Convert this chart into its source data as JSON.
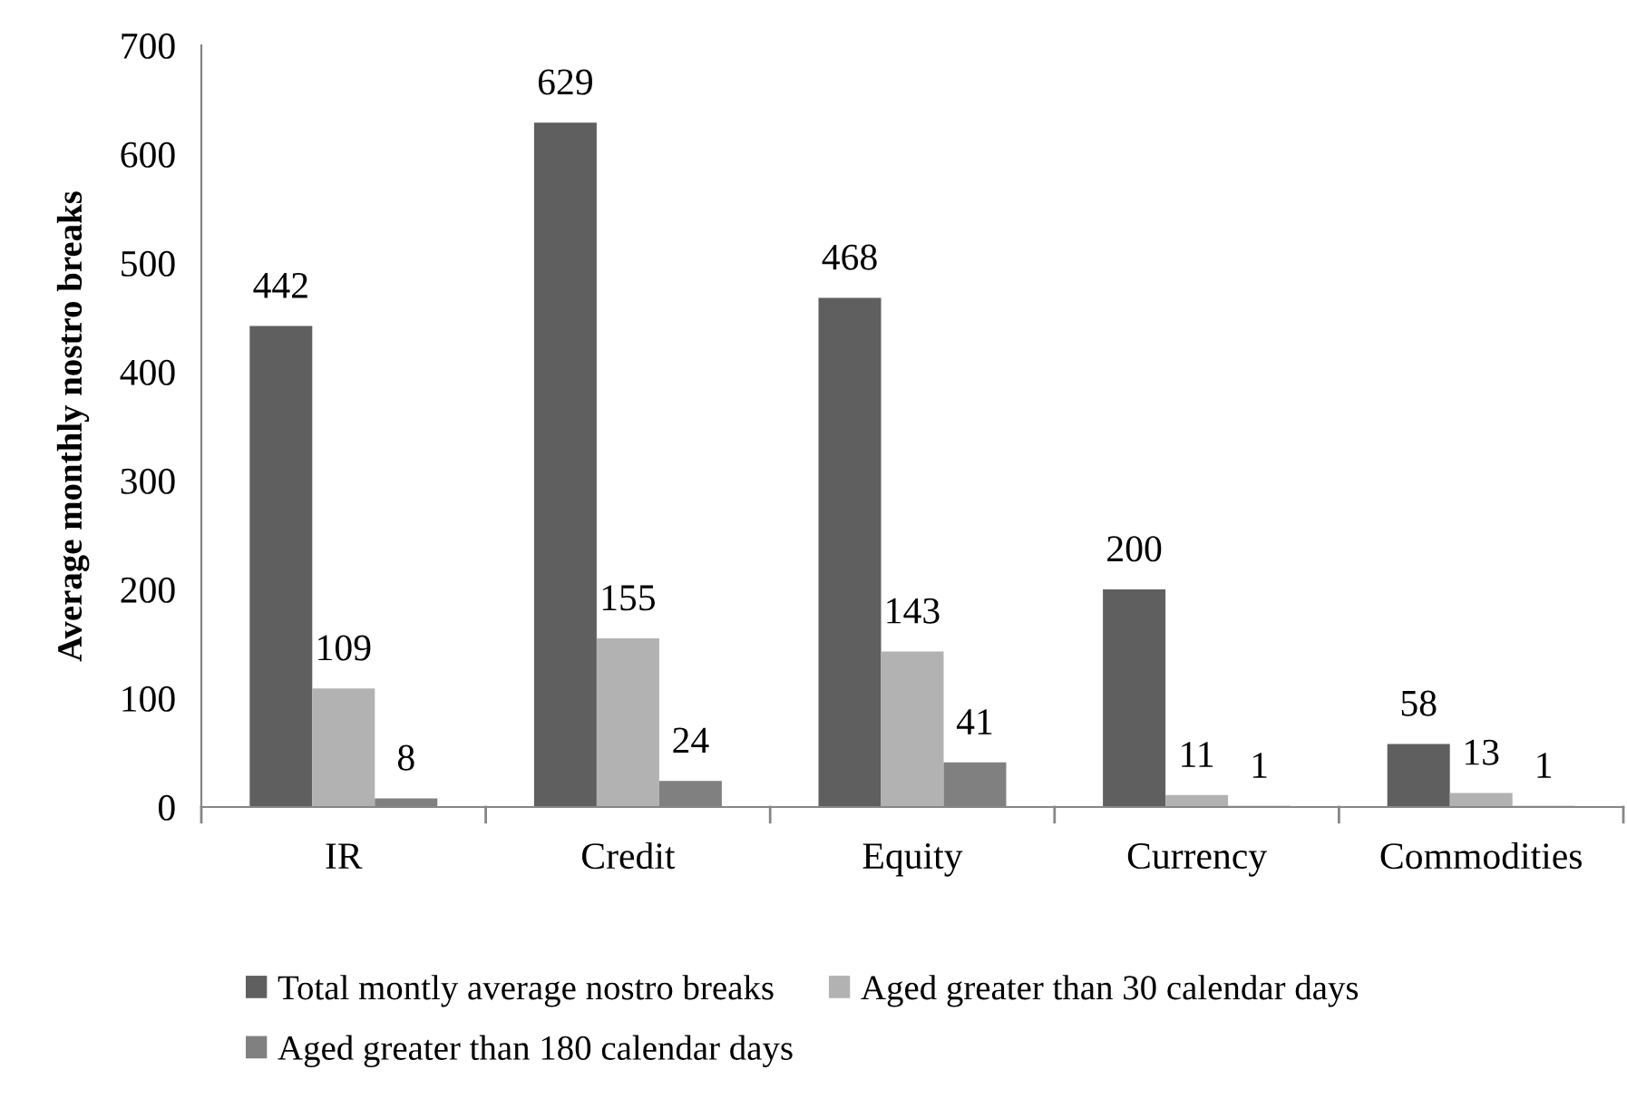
{
  "chart_data": {
    "type": "bar",
    "ylabel": "Average monthly nostro breaks",
    "categories": [
      "IR",
      "Credit",
      "Equity",
      "Currency",
      "Commodities"
    ],
    "series": [
      {
        "name": "Total montly average nostro breaks",
        "color": "#5f5f5f",
        "values": [
          442,
          629,
          468,
          200,
          58
        ]
      },
      {
        "name": "Aged greater than 30 calendar days",
        "color": "#b2b2b2",
        "values": [
          109,
          155,
          143,
          11,
          13
        ]
      },
      {
        "name": "Aged greater than 180 calendar days",
        "color": "#808080",
        "values": [
          8,
          24,
          41,
          1,
          1
        ]
      }
    ],
    "ylim": [
      0,
      700
    ],
    "yticks": [
      0,
      100,
      200,
      300,
      400,
      500,
      600,
      700
    ],
    "grid": false,
    "legend": "bottom",
    "data_labels": true
  }
}
